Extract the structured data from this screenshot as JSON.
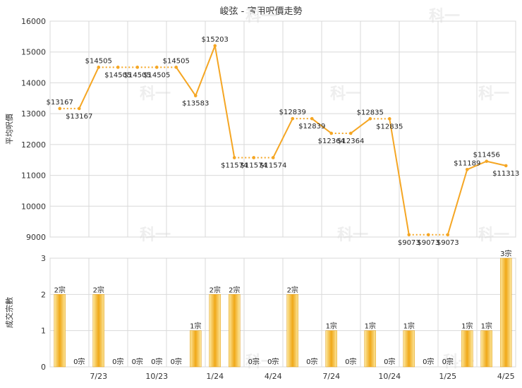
{
  "title": "峻弦 - 實用呎價走勢",
  "watermark": "科一",
  "colors": {
    "line": "#f5a623",
    "bar_light": "#fce8a0",
    "bar_dark": "#f0a818",
    "grid": "#d9d9d9",
    "text": "#333333"
  },
  "chart_data": [
    {
      "type": "line",
      "ylabel": "平均呎價",
      "ylim": [
        9000,
        16000
      ],
      "yticks": [
        9000,
        10000,
        11000,
        12000,
        13000,
        14000,
        15000,
        16000
      ],
      "grid": true,
      "values": [
        13167,
        13167,
        14505,
        14505,
        14505,
        14505,
        14505,
        13583,
        15203,
        11574,
        11574,
        11574,
        12839,
        12839,
        12364,
        12364,
        12835,
        12835,
        9073,
        9073,
        9073,
        11189,
        11456,
        11313
      ],
      "labels": [
        "$13167",
        "$13167",
        "$14505",
        "$14505",
        "$14505",
        "$14505",
        "$14505",
        "$13583",
        "$15203",
        "$11574",
        "$11574",
        "$11574",
        "$12839",
        "$12839",
        "$12364",
        "$12364",
        "$12835",
        "$12835",
        "$9073",
        "$9073",
        "$9073",
        "$11189",
        "$11456",
        "$11313"
      ],
      "solid": [
        false,
        true,
        false,
        false,
        false,
        false,
        true,
        true,
        true,
        false,
        false,
        true,
        false,
        true,
        false,
        true,
        false,
        true,
        false,
        false,
        true,
        true,
        true
      ]
    },
    {
      "type": "bar",
      "ylabel": "成交宗數",
      "ylim": [
        0,
        3
      ],
      "yticks": [
        0,
        1,
        2,
        3
      ],
      "grid": true,
      "values": [
        2,
        0,
        2,
        0,
        0,
        0,
        0,
        1,
        2,
        2,
        0,
        0,
        2,
        0,
        1,
        0,
        1,
        0,
        1,
        0,
        0,
        1,
        1,
        3
      ],
      "labels": [
        "2宗",
        "0宗",
        "2宗",
        "0宗",
        "0宗",
        "0宗",
        "0宗",
        "1宗",
        "2宗",
        "2宗",
        "0宗",
        "0宗",
        "2宗",
        "0宗",
        "1宗",
        "0宗",
        "1宗",
        "0宗",
        "1宗",
        "0宗",
        "0宗",
        "1宗",
        "1宗",
        "3宗"
      ],
      "xticks": [
        "7/23",
        "10/23",
        "1/24",
        "4/24",
        "7/24",
        "10/24",
        "1/25",
        "4/25"
      ]
    }
  ]
}
